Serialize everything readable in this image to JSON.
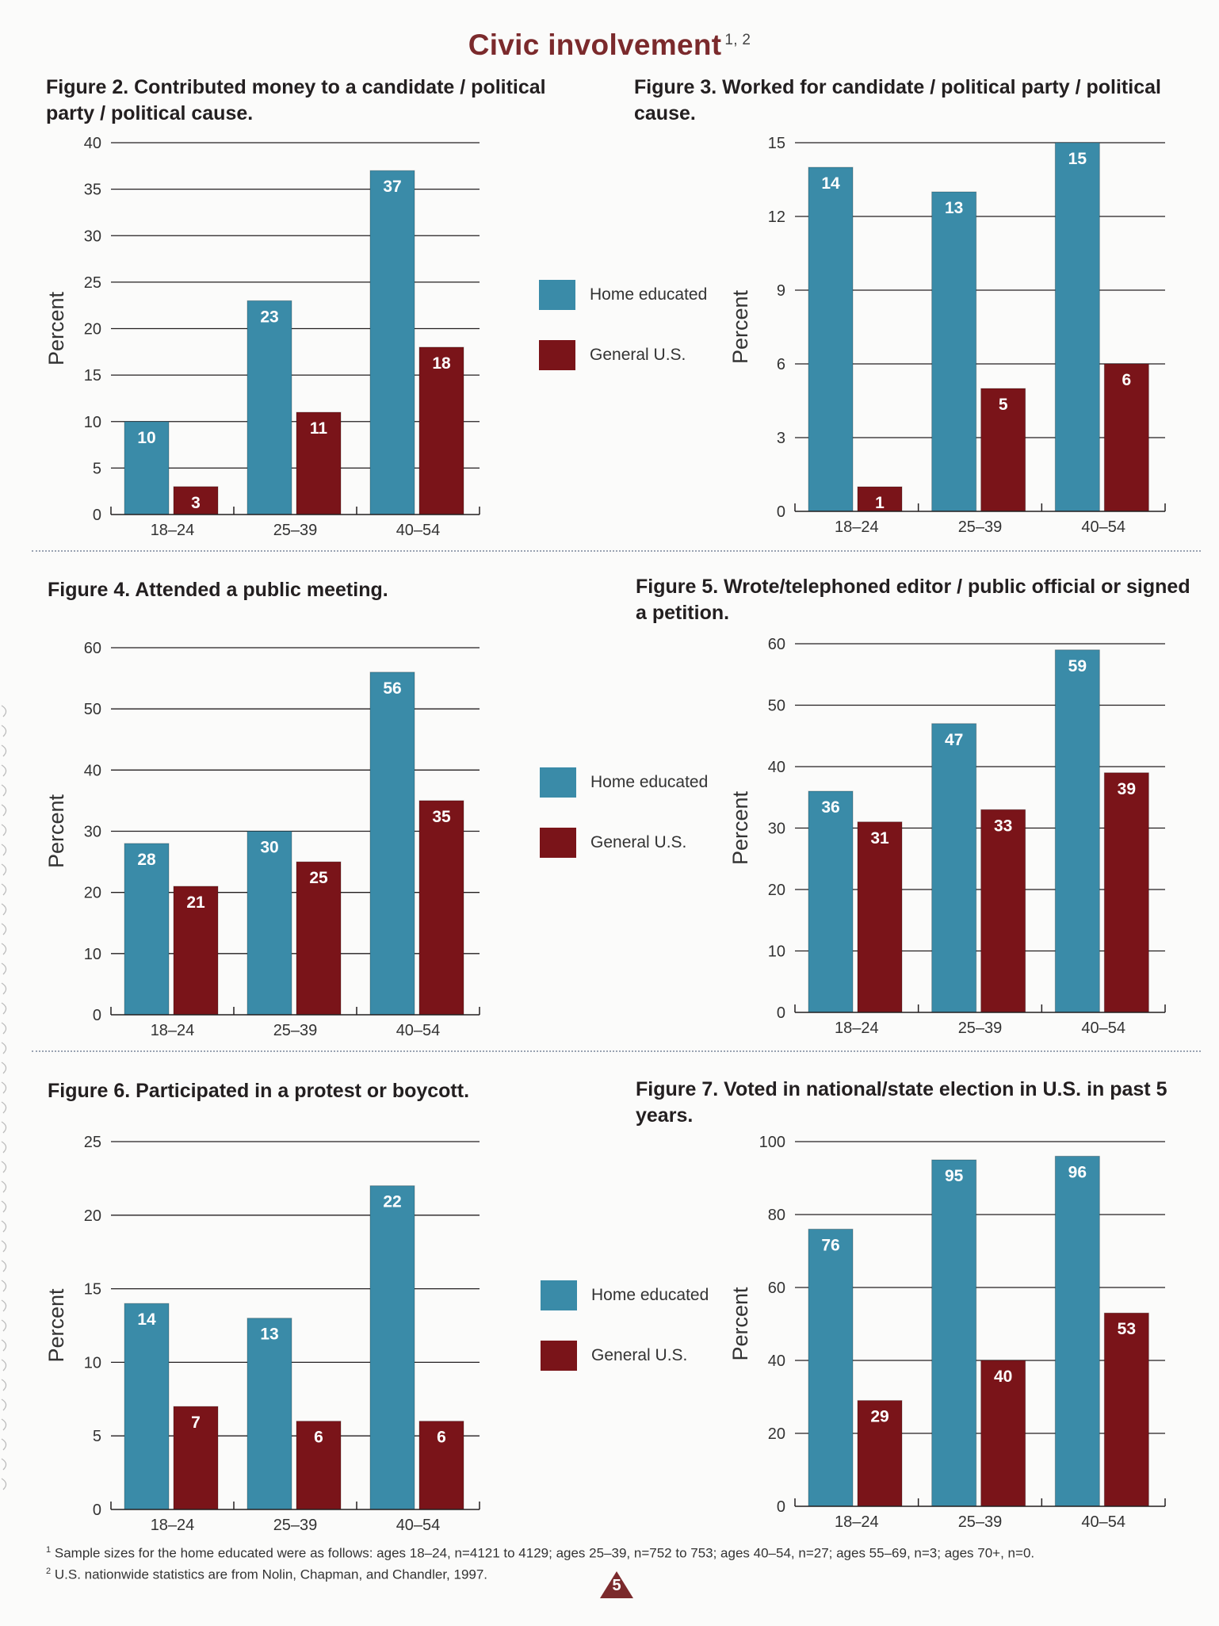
{
  "page": {
    "title": "Civic involvement",
    "title_note": "1, 2",
    "page_number": "5"
  },
  "colors": {
    "home": "#3a8ba8",
    "general": "#7a1419",
    "title": "#7b2a2c",
    "grid": "#231f20"
  },
  "legend": {
    "home_label": "Home educated",
    "general_label": "General U.S."
  },
  "footnotes": {
    "note1_marker": "1",
    "note1": "Sample sizes for the home educated were as follows: ages 18–24, n=4121 to 4129; ages 25–39, n=752 to 753; ages 40–54, n=27; ages 55–69, n=3; ages 70+, n=0.",
    "note2_marker": "2",
    "note2": "U.S. nationwide statistics are from Nolin, Chapman, and Chandler, 1997."
  },
  "chart_data": [
    {
      "id": "fig2",
      "type": "bar",
      "title": "Figure 2. Contributed money to a candidate / political party / political cause.",
      "xlabel": "",
      "ylabel": "Percent",
      "categories": [
        "18–24",
        "25–39",
        "40–54"
      ],
      "ylim": [
        0,
        40
      ],
      "yticks": [
        0,
        5,
        10,
        15,
        20,
        25,
        30,
        35,
        40
      ],
      "series": [
        {
          "name": "Home educated",
          "values": [
            10,
            23,
            37
          ]
        },
        {
          "name": "General U.S.",
          "values": [
            3,
            11,
            18
          ]
        }
      ]
    },
    {
      "id": "fig3",
      "type": "bar",
      "title": "Figure 3. Worked for candidate / political party / political cause.",
      "xlabel": "",
      "ylabel": "Percent",
      "categories": [
        "18–24",
        "25–39",
        "40–54"
      ],
      "ylim": [
        0,
        15
      ],
      "yticks": [
        0,
        3,
        6,
        9,
        12,
        15
      ],
      "series": [
        {
          "name": "Home educated",
          "values": [
            14,
            13,
            15
          ]
        },
        {
          "name": "General U.S.",
          "values": [
            1,
            5,
            6
          ]
        }
      ]
    },
    {
      "id": "fig4",
      "type": "bar",
      "title": "Figure 4. Attended a public meeting.",
      "xlabel": "",
      "ylabel": "Percent",
      "categories": [
        "18–24",
        "25–39",
        "40–54"
      ],
      "ylim": [
        0,
        60
      ],
      "yticks": [
        0,
        10,
        20,
        30,
        40,
        50,
        60
      ],
      "series": [
        {
          "name": "Home educated",
          "values": [
            28,
            30,
            56
          ]
        },
        {
          "name": "General U.S.",
          "values": [
            21,
            25,
            35
          ]
        }
      ]
    },
    {
      "id": "fig5",
      "type": "bar",
      "title": "Figure 5. Wrote/telephoned editor / public official or signed a petition.",
      "xlabel": "",
      "ylabel": "Percent",
      "categories": [
        "18–24",
        "25–39",
        "40–54"
      ],
      "ylim": [
        0,
        60
      ],
      "yticks": [
        0,
        10,
        20,
        30,
        40,
        50,
        60
      ],
      "series": [
        {
          "name": "Home educated",
          "values": [
            36,
            47,
            59
          ]
        },
        {
          "name": "General U.S.",
          "values": [
            31,
            33,
            39
          ]
        }
      ]
    },
    {
      "id": "fig6",
      "type": "bar",
      "title": "Figure 6. Participated in a protest or boycott.",
      "xlabel": "",
      "ylabel": "Percent",
      "categories": [
        "18–24",
        "25–39",
        "40–54"
      ],
      "ylim": [
        0,
        25
      ],
      "yticks": [
        0,
        5,
        10,
        15,
        20,
        25
      ],
      "series": [
        {
          "name": "Home educated",
          "values": [
            14,
            13,
            22
          ]
        },
        {
          "name": "General U.S.",
          "values": [
            7,
            6,
            6
          ]
        }
      ]
    },
    {
      "id": "fig7",
      "type": "bar",
      "title": "Figure 7. Voted in national/state election in U.S. in past 5 years.",
      "xlabel": "",
      "ylabel": "Percent",
      "categories": [
        "18–24",
        "25–39",
        "40–54"
      ],
      "ylim": [
        0,
        100
      ],
      "yticks": [
        0,
        20,
        40,
        60,
        80,
        100
      ],
      "series": [
        {
          "name": "Home educated",
          "values": [
            76,
            95,
            96
          ]
        },
        {
          "name": "General U.S.",
          "values": [
            29,
            40,
            53
          ]
        }
      ]
    }
  ]
}
